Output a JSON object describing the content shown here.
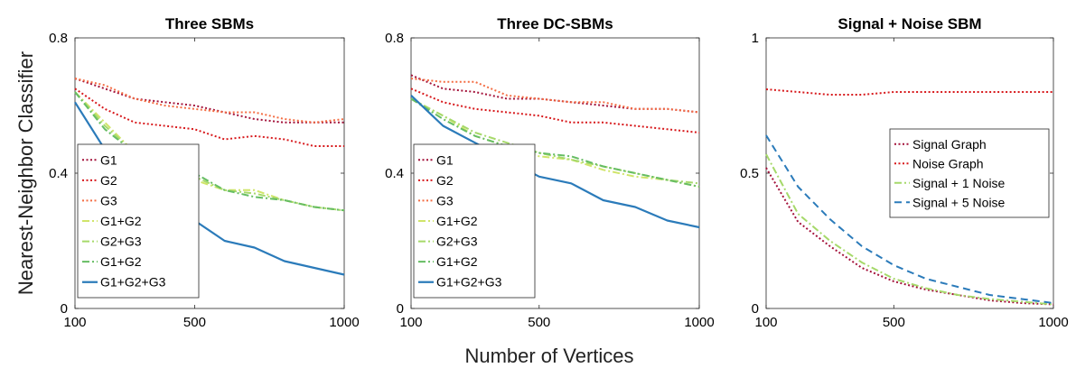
{
  "figure": {
    "ylabel": "Nearest-Neighbor Classifier",
    "xlabel": "Number of Vertices"
  },
  "chart_data": [
    {
      "type": "line",
      "title": "Three SBMs",
      "x": [
        100,
        200,
        300,
        400,
        500,
        600,
        700,
        800,
        900,
        1000
      ],
      "xlim": [
        100,
        1000
      ],
      "xticks": [
        100,
        500,
        1000
      ],
      "ylim": [
        0,
        0.8
      ],
      "yticks": [
        0,
        0.4,
        0.8
      ],
      "ytick_labels": [
        "0",
        "0.4",
        "0.8"
      ],
      "legend_loc": "lower-left",
      "series": [
        {
          "name": "G1",
          "color": "#a3123a",
          "dash": "dotted",
          "values": [
            0.68,
            0.65,
            0.62,
            0.61,
            0.6,
            0.58,
            0.56,
            0.55,
            0.55,
            0.55
          ]
        },
        {
          "name": "G2",
          "color": "#d7191c",
          "dash": "dotted",
          "values": [
            0.65,
            0.59,
            0.55,
            0.54,
            0.53,
            0.5,
            0.51,
            0.5,
            0.48,
            0.48
          ]
        },
        {
          "name": "G3",
          "color": "#f46d43",
          "dash": "dotted",
          "values": [
            0.68,
            0.66,
            0.62,
            0.6,
            0.59,
            0.58,
            0.58,
            0.56,
            0.55,
            0.56
          ]
        },
        {
          "name": "G1+G2",
          "color": "#d0e56a",
          "dash": "dashdot",
          "values": [
            0.64,
            0.55,
            0.46,
            0.4,
            0.38,
            0.35,
            0.35,
            0.32,
            0.3,
            0.29
          ]
        },
        {
          "name": "G2+G3",
          "color": "#a6d96a",
          "dash": "dashdot",
          "values": [
            0.64,
            0.54,
            0.46,
            0.42,
            0.39,
            0.35,
            0.34,
            0.32,
            0.3,
            0.29
          ]
        },
        {
          "name": "G1+G2",
          "color": "#66bd63",
          "dash": "dashdot",
          "values": [
            0.64,
            0.53,
            0.46,
            0.41,
            0.4,
            0.35,
            0.33,
            0.32,
            0.3,
            0.29
          ]
        },
        {
          "name": "G1+G2+G3",
          "color": "#2b7bba",
          "dash": "solid",
          "values": [
            0.61,
            0.47,
            0.38,
            0.32,
            0.26,
            0.2,
            0.18,
            0.14,
            0.12,
            0.1
          ]
        }
      ]
    },
    {
      "type": "line",
      "title": "Three DC-SBMs",
      "x": [
        100,
        200,
        300,
        400,
        500,
        600,
        700,
        800,
        900,
        1000
      ],
      "xlim": [
        100,
        1000
      ],
      "xticks": [
        100,
        500,
        1000
      ],
      "ylim": [
        0,
        0.8
      ],
      "yticks": [
        0,
        0.4,
        0.8
      ],
      "ytick_labels": [
        "0",
        "0.4",
        "0.8"
      ],
      "legend_loc": "lower-left",
      "series": [
        {
          "name": "G1",
          "color": "#a3123a",
          "dash": "dotted",
          "values": [
            0.69,
            0.65,
            0.64,
            0.62,
            0.62,
            0.61,
            0.6,
            0.59,
            0.59,
            0.58
          ]
        },
        {
          "name": "G2",
          "color": "#d7191c",
          "dash": "dotted",
          "values": [
            0.65,
            0.61,
            0.59,
            0.58,
            0.57,
            0.55,
            0.55,
            0.54,
            0.53,
            0.52
          ]
        },
        {
          "name": "G3",
          "color": "#f46d43",
          "dash": "dotted",
          "values": [
            0.68,
            0.67,
            0.67,
            0.63,
            0.62,
            0.61,
            0.61,
            0.59,
            0.59,
            0.58
          ]
        },
        {
          "name": "G1+G2",
          "color": "#d0e56a",
          "dash": "dashdot",
          "values": [
            0.62,
            0.57,
            0.51,
            0.48,
            0.45,
            0.44,
            0.41,
            0.39,
            0.38,
            0.36
          ]
        },
        {
          "name": "G2+G3",
          "color": "#a6d96a",
          "dash": "dashdot",
          "values": [
            0.62,
            0.57,
            0.52,
            0.49,
            0.46,
            0.44,
            0.42,
            0.4,
            0.38,
            0.37
          ]
        },
        {
          "name": "G1+G2",
          "color": "#66bd63",
          "dash": "dashdot",
          "values": [
            0.62,
            0.56,
            0.51,
            0.48,
            0.46,
            0.45,
            0.42,
            0.4,
            0.38,
            0.36
          ]
        },
        {
          "name": "G1+G2+G3",
          "color": "#2b7bba",
          "dash": "solid",
          "values": [
            0.63,
            0.54,
            0.49,
            0.44,
            0.39,
            0.37,
            0.32,
            0.3,
            0.26,
            0.24
          ]
        }
      ]
    },
    {
      "type": "line",
      "title": "Signal + Noise SBM",
      "x": [
        100,
        200,
        300,
        400,
        500,
        600,
        700,
        800,
        900,
        1000
      ],
      "xlim": [
        100,
        1000
      ],
      "xticks": [
        100,
        500,
        1000
      ],
      "ylim": [
        0,
        1
      ],
      "yticks": [
        0,
        0.5,
        1
      ],
      "ytick_labels": [
        "0",
        "0.5",
        "1"
      ],
      "legend_loc": "right",
      "series": [
        {
          "name": "Signal Graph",
          "color": "#a3123a",
          "dash": "dotted",
          "values": [
            0.52,
            0.32,
            0.23,
            0.15,
            0.1,
            0.07,
            0.05,
            0.03,
            0.02,
            0.015
          ]
        },
        {
          "name": "Noise Graph",
          "color": "#d7191c",
          "dash": "dotted",
          "values": [
            0.81,
            0.8,
            0.79,
            0.79,
            0.8,
            0.8,
            0.8,
            0.8,
            0.8,
            0.8
          ]
        },
        {
          "name": "Signal + 1 Noise",
          "color": "#a6d96a",
          "dash": "dashdot",
          "values": [
            0.57,
            0.35,
            0.25,
            0.17,
            0.11,
            0.075,
            0.05,
            0.035,
            0.025,
            0.015
          ]
        },
        {
          "name": "Signal + 5 Noise",
          "color": "#2b7bba",
          "dash": "dashed",
          "values": [
            0.64,
            0.45,
            0.33,
            0.23,
            0.16,
            0.11,
            0.08,
            0.05,
            0.035,
            0.02
          ]
        }
      ]
    }
  ]
}
